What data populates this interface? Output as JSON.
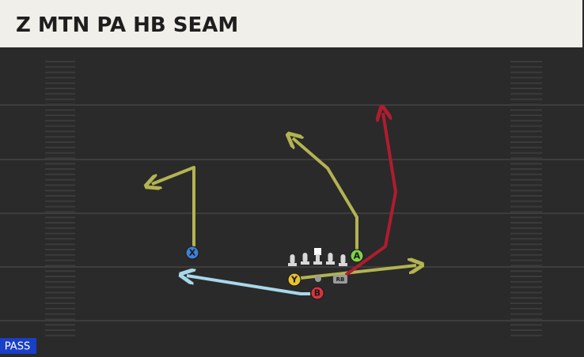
{
  "header": {
    "title": "Z MTN PA HB SEAM"
  },
  "players": [
    {
      "label": "X"
    },
    {
      "label": "A"
    },
    {
      "label": "Y"
    },
    {
      "label": "B"
    },
    {
      "label": "RB"
    }
  ],
  "play_type": "PASS"
}
